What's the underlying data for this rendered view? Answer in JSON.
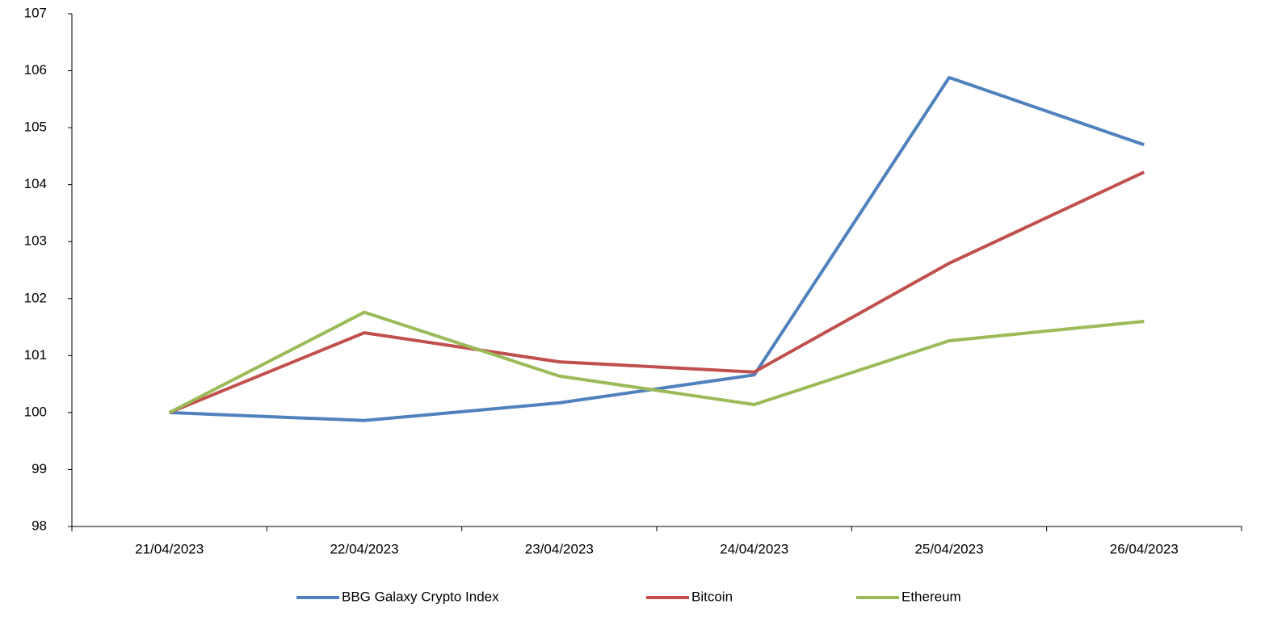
{
  "chart_data": {
    "type": "line",
    "categories": [
      "21/04/2023",
      "22/04/2023",
      "23/04/2023",
      "24/04/2023",
      "25/04/2023",
      "26/04/2023"
    ],
    "series": [
      {
        "name": "BBG Galaxy Crypto Index",
        "color": "#4f81bd",
        "values": [
          100,
          99.86,
          100.17,
          100.66,
          105.88,
          104.7
        ]
      },
      {
        "name": "Bitcoin",
        "color": "#c0504d",
        "values": [
          100,
          101.4,
          100.89,
          100.71,
          102.62,
          104.22
        ]
      },
      {
        "name": "Ethereum",
        "color": "#9bbb59",
        "values": [
          100,
          101.76,
          100.64,
          100.14,
          101.26,
          101.6
        ]
      }
    ],
    "ylim": [
      98,
      107
    ],
    "yticks": [
      98,
      99,
      100,
      101,
      102,
      103,
      104,
      105,
      106,
      107
    ],
    "grid": false,
    "legend": "bottom"
  }
}
